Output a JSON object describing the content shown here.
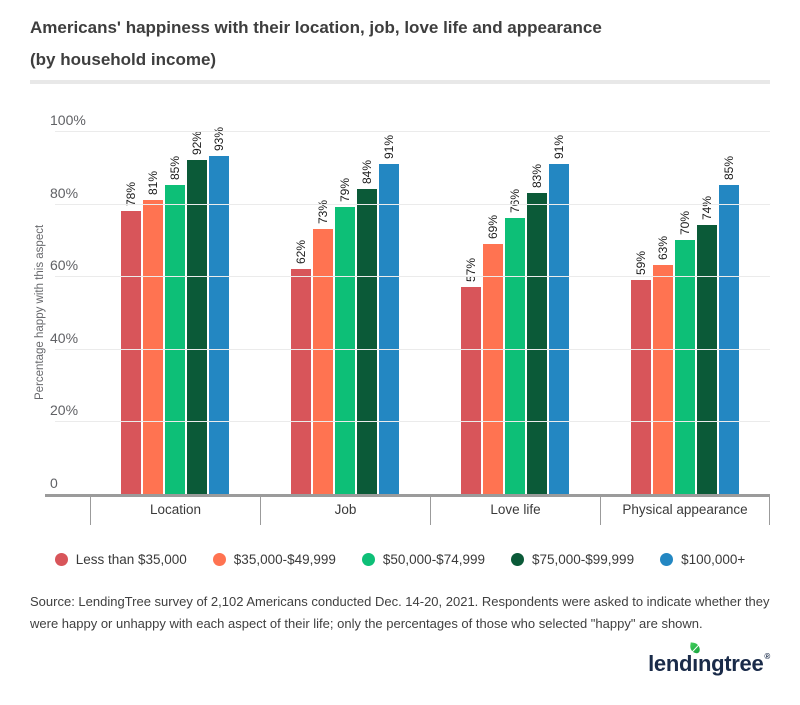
{
  "header": {
    "title_line1": "Americans' happiness with their location, job, love life and appearance",
    "title_line2": "(by household income)"
  },
  "chart_data": {
    "type": "bar",
    "title": "Americans' happiness with their location, job, love life and appearance (by household income)",
    "categories": [
      "Location",
      "Job",
      "Love life",
      "Physical appearance"
    ],
    "series": [
      {
        "name": "Less than $35,000",
        "color": "#d8555a",
        "values": [
          78,
          62,
          57,
          59
        ]
      },
      {
        "name": "$35,000-$49,999",
        "color": "#ff7351",
        "values": [
          81,
          73,
          69,
          63
        ]
      },
      {
        "name": "$50,000-$74,999",
        "color": "#0dbf77",
        "values": [
          85,
          79,
          76,
          70
        ]
      },
      {
        "name": "$75,000-$99,999",
        "color": "#0b5a38",
        "values": [
          92,
          84,
          83,
          74
        ]
      },
      {
        "name": "$100,000+",
        "color": "#2387c2",
        "values": [
          93,
          91,
          91,
          85
        ]
      }
    ],
    "xlabel": "",
    "ylabel": "Percentage happy with this aspect",
    "ylim": [
      0,
      100
    ],
    "y_ticks": [
      {
        "value": 0,
        "label": "0"
      },
      {
        "value": 20,
        "label": "20%"
      },
      {
        "value": 40,
        "label": "40%"
      },
      {
        "value": 60,
        "label": "60%"
      },
      {
        "value": 80,
        "label": "80%"
      },
      {
        "value": 100,
        "label": "100%"
      }
    ],
    "grid": true,
    "legend_position": "bottom",
    "value_label_format": "{value}%"
  },
  "footer": {
    "source_text": "Source: LendingTree survey of 2,102 Americans conducted Dec. 14-20, 2021. Respondents were asked to indicate whether they were happy or unhappy with each aspect of their life; only the percentages of those who selected \"happy\" are shown.",
    "logo": {
      "part1": "lend",
      "part2": "ı",
      "part3": "ngtree",
      "reg": "®",
      "navy": "#1a2b49",
      "leaf_green": "#2db14c"
    }
  }
}
